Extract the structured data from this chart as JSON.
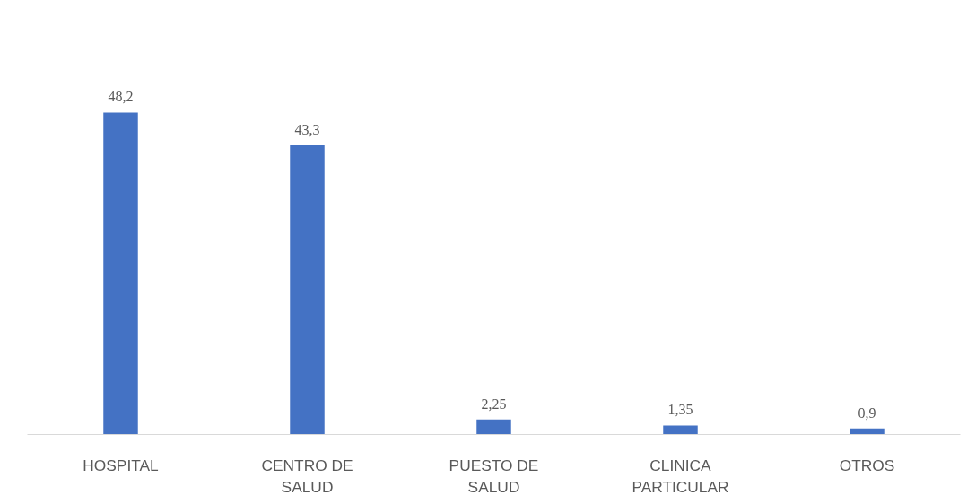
{
  "chart_data": {
    "type": "bar",
    "categories": [
      "HOSPITAL",
      "CENTRO DE\nSALUD",
      "PUESTO DE\nSALUD",
      "CLINICA\nPARTICULAR",
      "OTROS"
    ],
    "values": [
      48.2,
      43.3,
      2.25,
      1.35,
      0.9
    ],
    "value_labels": [
      "48,2",
      "43,3",
      "2,25",
      "1,35",
      "0,9"
    ],
    "color": "#4472c4",
    "grid": false
  }
}
